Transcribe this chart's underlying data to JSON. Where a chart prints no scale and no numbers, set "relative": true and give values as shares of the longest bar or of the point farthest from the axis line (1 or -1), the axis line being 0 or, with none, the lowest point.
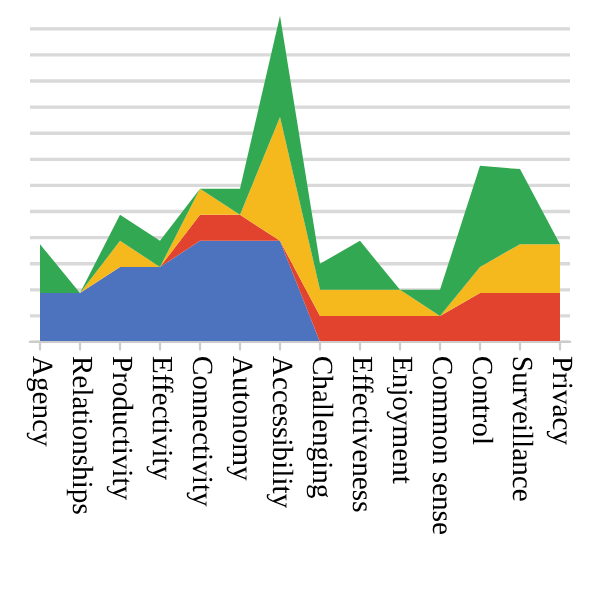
{
  "chart_data": {
    "type": "area",
    "stacked": true,
    "relative": true,
    "grid": "y",
    "categories": [
      "Agency",
      "Relationships",
      "Productivity",
      "Effectivity",
      "Connectivity",
      "Autonomy",
      "Accessibility",
      "Challenging",
      "Effectiveness",
      "Enjoyment",
      "Common sense",
      "Control",
      "Surveillance",
      "Privacy"
    ],
    "series": [
      {
        "color": "#4e73be",
        "values": [
          0.15,
          0.15,
          0.23,
          0.23,
          0.31,
          0.31,
          0.31,
          0,
          0,
          0,
          0,
          0,
          0,
          0
        ]
      },
      {
        "color": "#e2432f",
        "values": [
          0,
          0,
          0,
          0,
          0.08,
          0.08,
          0,
          0.08,
          0.08,
          0.08,
          0.08,
          0.15,
          0.15,
          0.15
        ]
      },
      {
        "color": "#f5b91d",
        "values": [
          0,
          0,
          0.08,
          0,
          0.08,
          0,
          0.38,
          0.08,
          0.08,
          0.08,
          0,
          0.08,
          0.15,
          0.15
        ]
      },
      {
        "color": "#33a852",
        "values": [
          0.15,
          0,
          0.08,
          0.08,
          0,
          0.08,
          0.31,
          0.08,
          0.15,
          0,
          0.08,
          0.31,
          0.23,
          0
        ]
      }
    ]
  }
}
